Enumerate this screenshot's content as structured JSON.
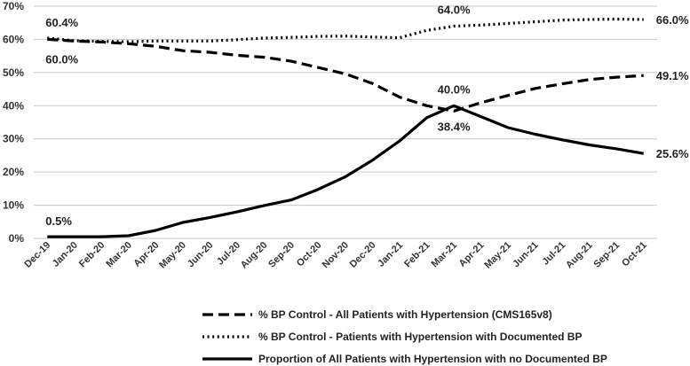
{
  "chart_data": {
    "type": "line",
    "title": "",
    "xlabel": "",
    "ylabel": "",
    "ylim": [
      0,
      70
    ],
    "y_ticks": [
      "0%",
      "10%",
      "20%",
      "30%",
      "40%",
      "50%",
      "60%",
      "70%"
    ],
    "categories": [
      "Dec-19",
      "Jan-20",
      "Feb-20",
      "Mar-20",
      "Apr-20",
      "May-20",
      "Jun-20",
      "Jul-20",
      "Aug-20",
      "Sep-20",
      "Oct-20",
      "Nov-20",
      "Dec-20",
      "Jan-21",
      "Feb-21",
      "Mar-21",
      "Apr-21",
      "May-21",
      "Jun-21",
      "Jul-21",
      "Aug-21",
      "Sep-21",
      "Oct-21"
    ],
    "series": [
      {
        "name": "% BP Control - All Patients with Hypertension (CMS165v8)",
        "style": "dashed",
        "values": [
          60.0,
          59.5,
          59.2,
          58.7,
          57.9,
          56.6,
          56.1,
          55.2,
          54.6,
          53.4,
          51.5,
          49.6,
          46.7,
          42.6,
          40.0,
          38.4,
          40.9,
          43.1,
          45.2,
          46.6,
          47.9,
          48.6,
          49.1
        ]
      },
      {
        "name": "% BP Control - Patients with Hypertension with Documented BP",
        "style": "dotted",
        "values": [
          60.4,
          59.6,
          59.4,
          59.3,
          59.5,
          59.5,
          59.5,
          59.9,
          60.4,
          60.6,
          60.9,
          61.0,
          60.7,
          60.5,
          62.7,
          64.0,
          64.3,
          64.8,
          65.3,
          65.8,
          66.0,
          66.1,
          66.0
        ]
      },
      {
        "name": "Proportion of All Patients with Hypertension with no Documented BP",
        "style": "solid",
        "values": [
          0.5,
          0.5,
          0.5,
          0.8,
          2.4,
          4.8,
          6.3,
          8.0,
          9.9,
          11.6,
          14.8,
          18.6,
          23.6,
          29.4,
          36.4,
          40.0,
          36.7,
          33.4,
          31.4,
          29.7,
          28.2,
          27.0,
          25.6
        ]
      }
    ],
    "annotations": [
      {
        "text": "60.4%",
        "series": 1,
        "index": 0,
        "pos": "above-right"
      },
      {
        "text": "60.0%",
        "series": 0,
        "index": 0,
        "pos": "below-right"
      },
      {
        "text": "64.0%",
        "series": 1,
        "index": 15,
        "pos": "above"
      },
      {
        "text": "66.0%",
        "series": 1,
        "index": 22,
        "pos": "right"
      },
      {
        "text": "49.1%",
        "series": 0,
        "index": 22,
        "pos": "right"
      },
      {
        "text": "40.0%",
        "series": 2,
        "index": 15,
        "pos": "above"
      },
      {
        "text": "38.4%",
        "series": 0,
        "index": 15,
        "pos": "below"
      },
      {
        "text": "25.6%",
        "series": 2,
        "index": 22,
        "pos": "right"
      },
      {
        "text": "0.5%",
        "series": 2,
        "index": 0,
        "pos": "above-right"
      }
    ],
    "legend_position": "bottom"
  }
}
